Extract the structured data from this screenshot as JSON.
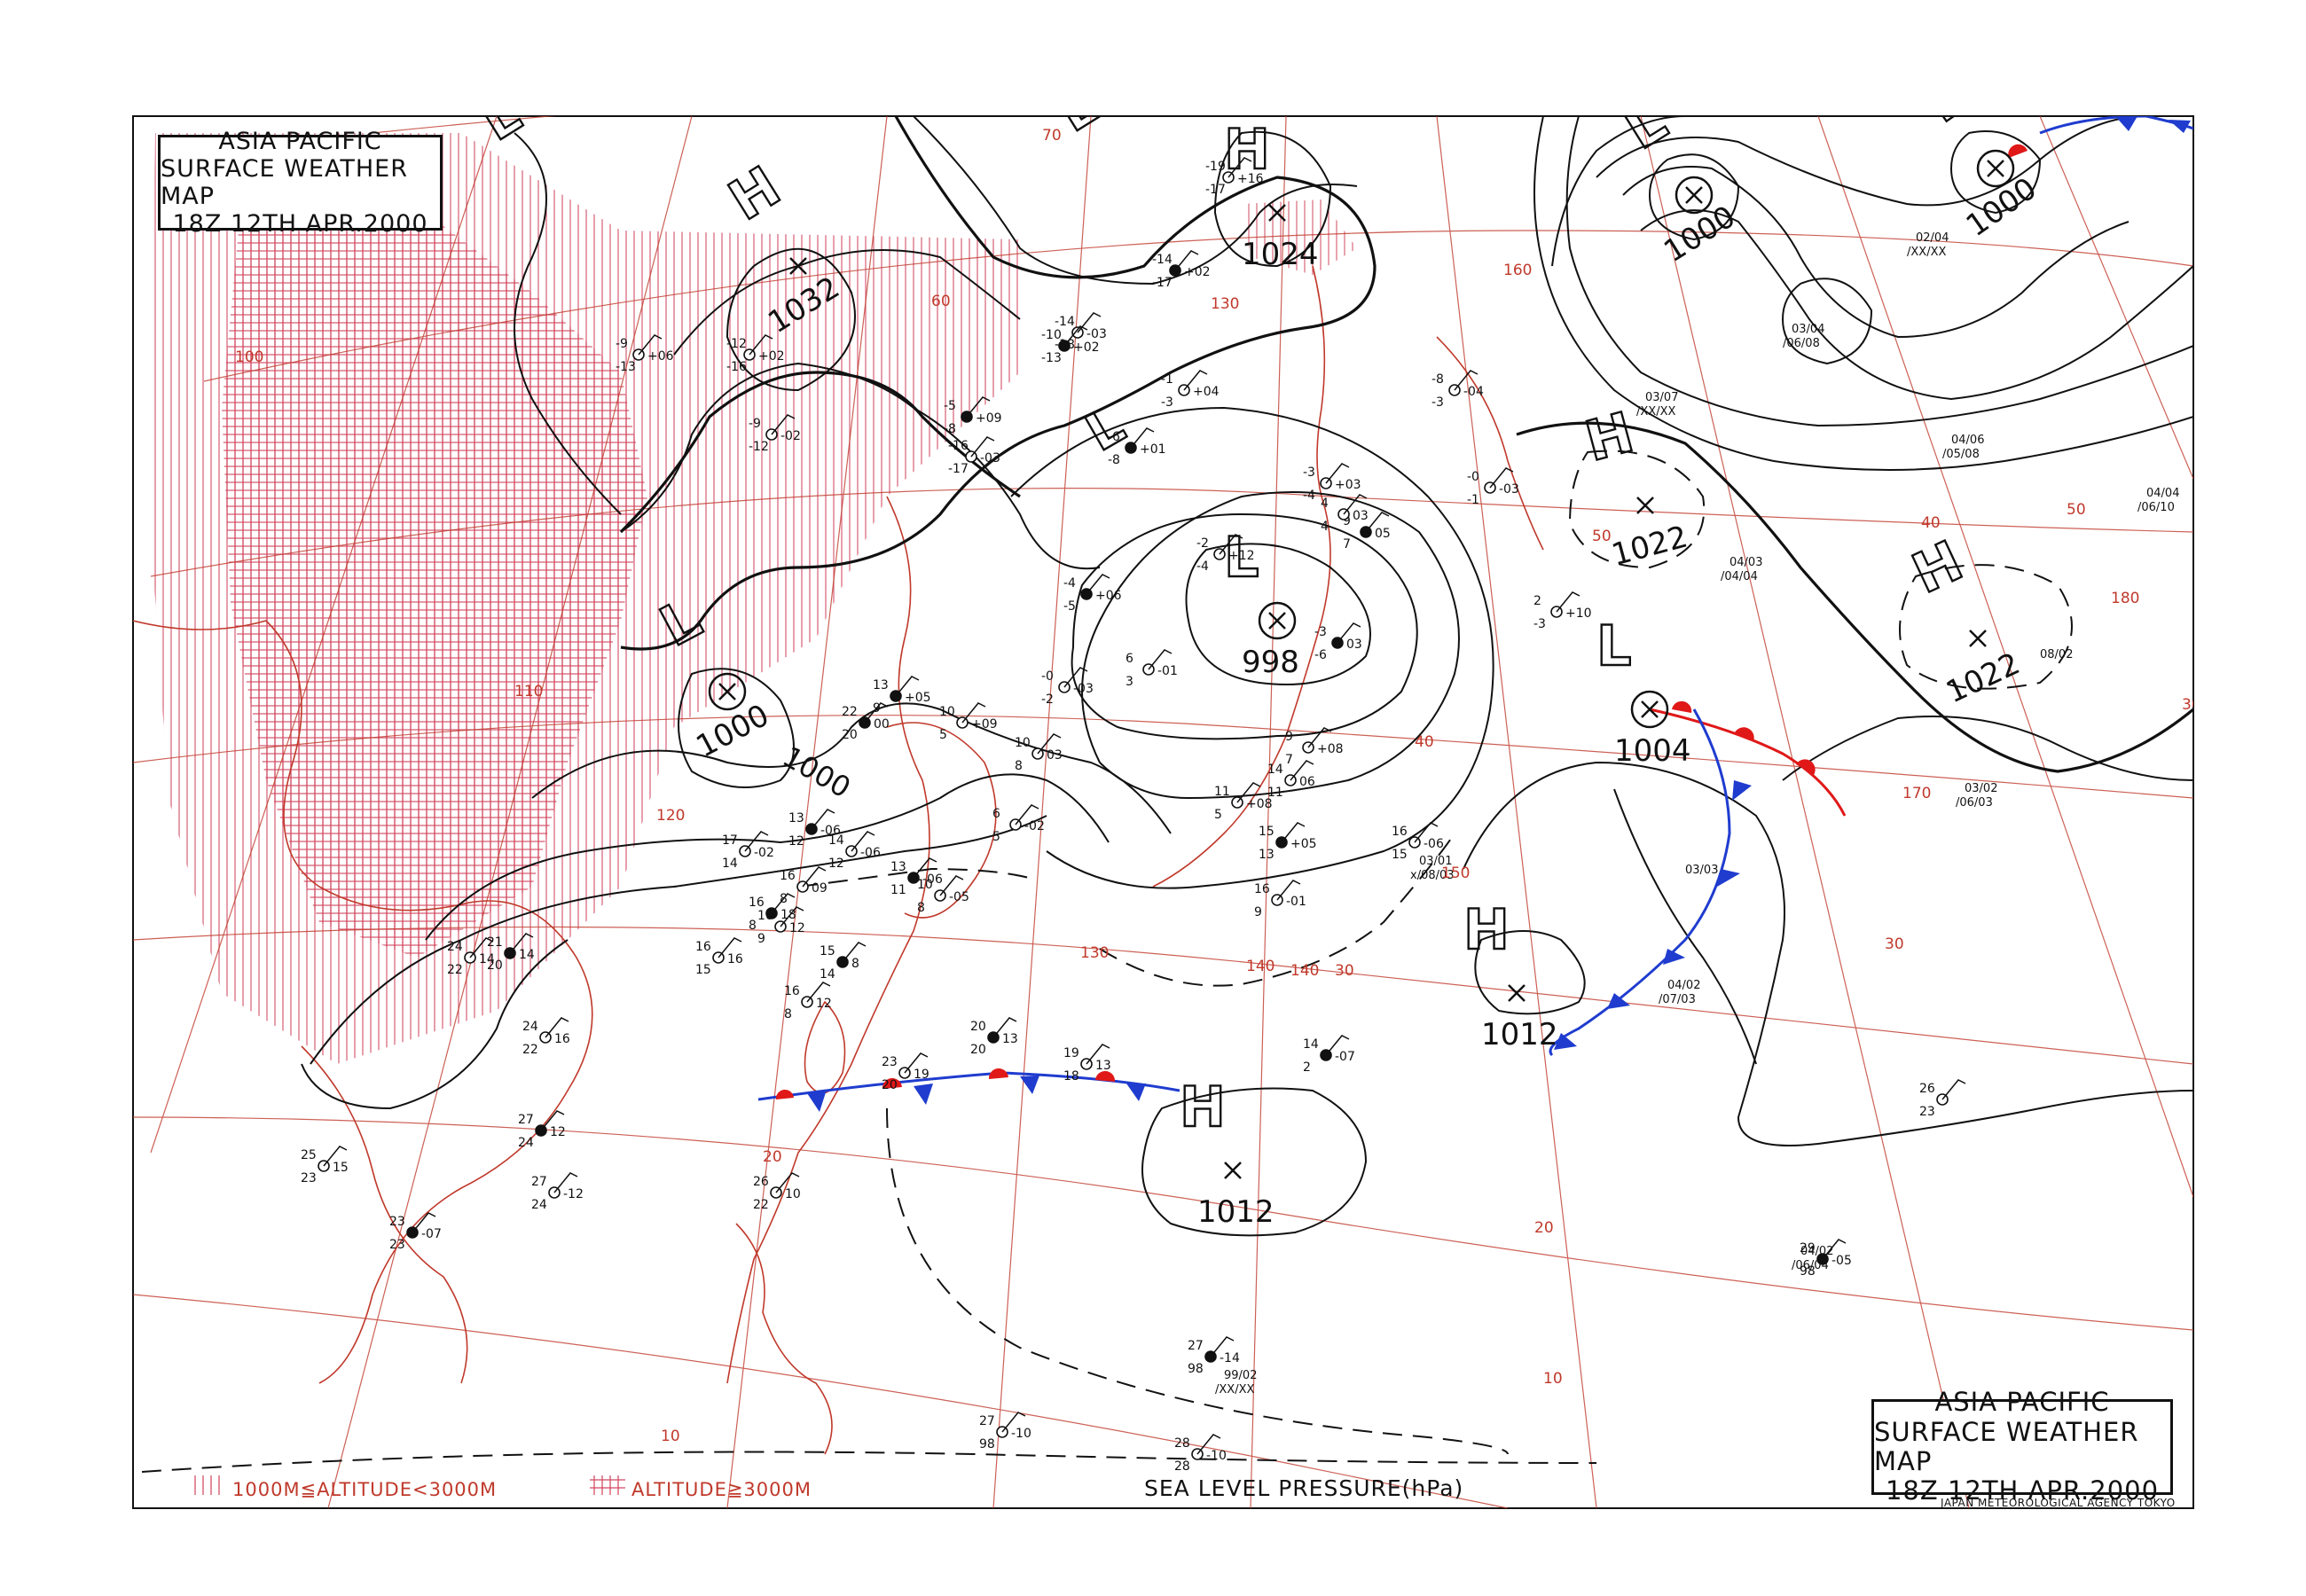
{
  "map": {
    "title_lines": [
      "ASIA PACIFIC",
      "SURFACE WEATHER MAP",
      "18Z 12TH APR.2000"
    ],
    "legend": {
      "mid_altitude": "1000M≦ALTITUDE<3000M",
      "high_altitude": "ALTITUDE≧3000M"
    },
    "pressure_label": "SEA LEVEL PRESSURE(hPa)",
    "agency": "JAPAN METEOROLOGICAL AGENCY TOKYO",
    "colors": {
      "isobar": "#111111",
      "grid": "#c0392b",
      "coast": "#c0392b",
      "cold_front": "#1f3ccf",
      "warm_front": "#e01818"
    },
    "pressure_systems": [
      {
        "type": "H",
        "value": "1032"
      },
      {
        "type": "H",
        "value": "1024"
      },
      {
        "type": "L",
        "value": "1000"
      },
      {
        "type": "L",
        "value": "998"
      },
      {
        "type": "L",
        "value": "1000"
      },
      {
        "type": "L",
        "value": "1000"
      },
      {
        "type": "H",
        "value": "1022"
      },
      {
        "type": "H",
        "value": "1022"
      },
      {
        "type": "L",
        "value": "1004"
      },
      {
        "type": "H",
        "value": "1012"
      },
      {
        "type": "H",
        "value": "1012"
      }
    ],
    "system_labels": {
      "extra_lows": [
        "L",
        "L",
        "L"
      ]
    },
    "isobar_labels": [
      "1000"
    ],
    "latitude_labels": [
      "70",
      "60",
      "50",
      "40",
      "30",
      "20",
      "10",
      "40",
      "30",
      "50",
      "30",
      "20",
      "10"
    ],
    "longitude_labels": [
      "100",
      "110",
      "120",
      "130",
      "140",
      "150",
      "160",
      "170",
      "180",
      "130",
      "140"
    ],
    "stations": [
      {
        "t": "22",
        "d": "20",
        "p": "00"
      },
      {
        "t": "17",
        "d": "14",
        "p": "-02"
      },
      {
        "t": "14",
        "d": "12",
        "p": "-06"
      },
      {
        "t": "13",
        "d": "12",
        "p": "-06"
      },
      {
        "t": "6",
        "d": "3",
        "p": "-01"
      },
      {
        "t": "10",
        "d": "5",
        "p": "+09"
      },
      {
        "t": "13",
        "d": "9",
        "p": "+05"
      },
      {
        "t": "10",
        "d": "8",
        "p": "03"
      },
      {
        "t": "-0",
        "d": "-2",
        "p": "-03"
      },
      {
        "t": "16",
        "d": "8",
        "p": "18"
      },
      {
        "t": "16",
        "d": "15",
        "p": "16"
      },
      {
        "t": "16",
        "d": "8",
        "p": "12"
      },
      {
        "t": "20",
        "d": "20",
        "p": "13"
      },
      {
        "t": "23",
        "d": "20",
        "p": "19"
      },
      {
        "t": "19",
        "d": "18",
        "p": "13"
      },
      {
        "t": "27",
        "d": "98",
        "p": "-14"
      },
      {
        "t": "28",
        "d": "28",
        "p": "-10"
      },
      {
        "t": "27",
        "d": "98",
        "p": "-10"
      },
      {
        "t": "21",
        "d": "20",
        "p": "14"
      },
      {
        "t": "24",
        "d": "22",
        "p": "16"
      },
      {
        "t": "25",
        "d": "23",
        "p": "15"
      },
      {
        "t": "27",
        "d": "24",
        "p": "12"
      },
      {
        "t": "26",
        "d": "22",
        "p": "10"
      },
      {
        "t": "26",
        "d": "23",
        "p": ""
      },
      {
        "t": "29",
        "d": "98",
        "p": "-05"
      },
      {
        "t": "-8",
        "d": "-3",
        "p": "-04"
      },
      {
        "t": "-0",
        "d": "-1",
        "p": "-03"
      },
      {
        "t": "-3",
        "d": "-6",
        "p": "03"
      },
      {
        "t": "9",
        "d": "7",
        "p": "+08"
      },
      {
        "t": "11",
        "d": "5",
        "p": "+08"
      },
      {
        "t": "15",
        "d": "13",
        "p": "+05"
      },
      {
        "t": "14",
        "d": "11",
        "p": "06"
      },
      {
        "t": "16",
        "d": "9",
        "p": "-01"
      },
      {
        "t": "14",
        "d": "2",
        "p": "-07"
      },
      {
        "t": "16",
        "d": "15",
        "p": "-06"
      },
      {
        "t": "2",
        "d": "-3",
        "p": "+10"
      },
      {
        "t": "9",
        "d": "7",
        "p": "05"
      },
      {
        "t": "4",
        "d": "4",
        "p": "03"
      },
      {
        "t": "-19",
        "d": "-17",
        "p": "+16"
      },
      {
        "t": "-14",
        "d": "-17",
        "p": "+02"
      },
      {
        "t": "-14",
        "d": "-18",
        "p": "-03"
      },
      {
        "t": "-1",
        "d": "-3",
        "p": "+04"
      },
      {
        "t": "-6",
        "d": "-8",
        "p": "+01"
      },
      {
        "t": "-2",
        "d": "-4",
        "p": "+12"
      },
      {
        "t": "-3",
        "d": "-4",
        "p": "+03"
      },
      {
        "t": "-4",
        "d": "-5",
        "p": "+06"
      },
      {
        "t": "-9",
        "d": "-13",
        "p": "+06"
      },
      {
        "t": "-12",
        "d": "-16",
        "p": "+02"
      },
      {
        "t": "-10",
        "d": "-13",
        "p": "+02"
      },
      {
        "t": "-16",
        "d": "-17",
        "p": "-03"
      },
      {
        "t": "-9",
        "d": "-12",
        "p": "-02"
      },
      {
        "t": "-5",
        "d": "-8",
        "p": "+09"
      },
      {
        "t": "6",
        "d": "5",
        "p": "-02"
      },
      {
        "t": "10",
        "d": "8",
        "p": "-05"
      },
      {
        "t": "13",
        "d": "11",
        "p": "-06"
      },
      {
        "t": "16",
        "d": "8",
        "p": "09"
      },
      {
        "t": "16",
        "d": "9",
        "p": "12"
      },
      {
        "t": "15",
        "d": "14",
        "p": "8"
      },
      {
        "t": "24",
        "d": "22",
        "p": "14"
      },
      {
        "t": "27",
        "d": "24",
        "p": "-12"
      },
      {
        "t": "23",
        "d": "23",
        "p": "-07"
      }
    ],
    "ship_reports": [
      {
        "a": "03/01",
        "b": "x/08/03"
      },
      {
        "a": "04/02",
        "b": "/07/03"
      },
      {
        "a": "03/03",
        "b": ""
      },
      {
        "a": "99/02",
        "b": "/XX/XX"
      },
      {
        "a": "04/02",
        "b": "/06/04"
      },
      {
        "a": "04/06",
        "b": "/05/08"
      },
      {
        "a": "04/04",
        "b": "/06/10"
      },
      {
        "a": "08/02",
        "b": ""
      },
      {
        "a": "03/02",
        "b": "/06/03"
      },
      {
        "a": "03/04",
        "b": "/06/08"
      },
      {
        "a": "04/03",
        "b": "/04/04"
      },
      {
        "a": "03/07",
        "b": "/XX/XX"
      },
      {
        "a": "02/04",
        "b": "/XX/XX"
      }
    ]
  }
}
